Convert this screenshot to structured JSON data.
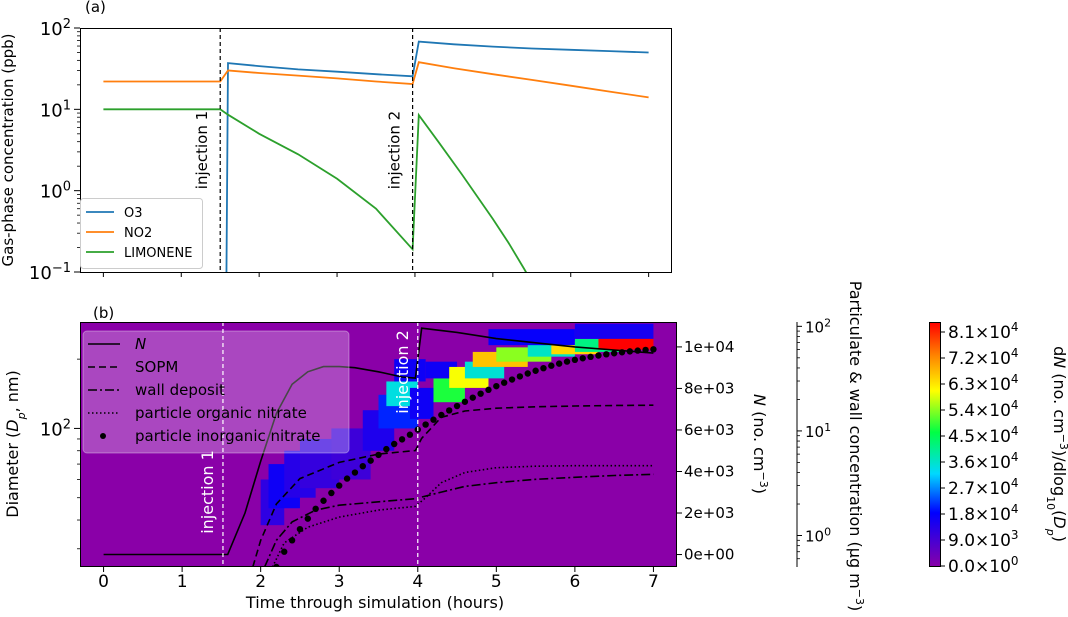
{
  "chart_data": [
    {
      "type": "line",
      "panel_label": "(a)",
      "ylabel": "Gas-phase concentration (ppb)",
      "yscale": "log",
      "ylim": [
        0.1,
        100
      ],
      "xlim": [
        -0.3,
        7.3
      ],
      "ytick_labels": [
        "10$^{-1}$",
        "10$^{0}$",
        "10$^{1}$",
        "10$^{2}$"
      ],
      "y_ticks": [
        {
          "value": 0.1,
          "base": "10",
          "exp": "−1"
        },
        {
          "value": 1,
          "base": "10",
          "exp": "0"
        },
        {
          "value": 10,
          "base": "10",
          "exp": "1"
        },
        {
          "value": 100,
          "base": "10",
          "exp": "2"
        }
      ],
      "injections": [
        {
          "x": 1.5,
          "label": "injection 1"
        },
        {
          "x": 3.97,
          "label": "injection 2"
        }
      ],
      "legend_position": "lower-left",
      "series": [
        {
          "name": "O3",
          "color": "#1f77b4",
          "x": [
            0,
            1.5,
            1.52,
            1.58,
            1.6,
            2.0,
            2.5,
            3.0,
            3.5,
            3.97,
            4.05,
            4.5,
            5.0,
            5.5,
            6.0,
            6.5,
            7.0
          ],
          "y": [
            null,
            null,
            0.08,
            0.08,
            37,
            34,
            31,
            29,
            27,
            25.5,
            68,
            63,
            59,
            56,
            54,
            52,
            50
          ]
        },
        {
          "name": "NO2",
          "color": "#ff7f0e",
          "x": [
            0,
            1.5,
            1.6,
            2.0,
            2.5,
            3.0,
            3.5,
            3.97,
            4.05,
            4.5,
            5.0,
            5.5,
            6.0,
            6.5,
            7.0
          ],
          "y": [
            22,
            22,
            30,
            28,
            26,
            24,
            22,
            20.5,
            38,
            32,
            27,
            23,
            19.5,
            16.5,
            14
          ]
        },
        {
          "name": "LIMONENE",
          "color": "#2ca02c",
          "x": [
            0,
            1.0,
            1.5,
            1.6,
            2.0,
            2.5,
            3.0,
            3.5,
            3.97,
            4.05,
            4.3,
            4.6,
            5.0,
            5.2,
            5.4,
            5.5
          ],
          "y": [
            10,
            10,
            10,
            8.6,
            5.0,
            2.8,
            1.4,
            0.6,
            0.19,
            8.5,
            4.0,
            1.6,
            0.45,
            0.23,
            0.11,
            0.075
          ]
        }
      ]
    },
    {
      "type": "heatmap",
      "panel_label": "(b)",
      "xlabel": "Time through simulation (hours)",
      "ylabel": "Diameter (D$_p$, nm)",
      "ytick_labels": [
        "10$^{2}$"
      ],
      "y_ticks": [
        {
          "value": 100,
          "base": "10",
          "exp": "2"
        }
      ],
      "yscale": "log",
      "xlim": [
        -0.3,
        7.3
      ],
      "xticks": [
        0,
        1,
        2,
        3,
        4,
        5,
        6,
        7
      ],
      "xtick_labels": [
        "0",
        "1",
        "2",
        "3",
        "4",
        "5",
        "6",
        "7"
      ],
      "ylim_nm": [
        25,
        290
      ],
      "injections": [
        {
          "x": 1.52,
          "label": "injection 1"
        },
        {
          "x": 4.0,
          "label": "injection 2"
        }
      ],
      "right_axis": {
        "label": "N (no. cm$^{-3}$)",
        "ylim": [
          -600,
          11200
        ],
        "ticks": [
          0,
          2000,
          4000,
          6000,
          8000,
          10000
        ],
        "tick_labels": [
          "0e+00",
          "2e+03",
          "4e+03",
          "6e+03",
          "8e+03",
          "1e+04"
        ]
      },
      "far_right_axis": {
        "label": "Particulate & wall concentration (µg m$^{-3}$)",
        "yscale": "log",
        "ylim": [
          0.5,
          110
        ],
        "tick_labels": [
          "10$^{0}$",
          "10$^{1}$",
          "10$^{2}$"
        ],
        "ticks": [
          {
            "value": 1,
            "base": "10",
            "exp": "0"
          },
          {
            "value": 10,
            "base": "10",
            "exp": "1"
          },
          {
            "value": 100,
            "base": "10",
            "exp": "2"
          }
        ]
      },
      "colorbar": {
        "label": "dN (no. cm$^{-3}$)/dlog$_{10}$(D$_p$)",
        "min": 0,
        "max": 81000,
        "tick_labels": [
          "0.0×10$^{0}$",
          "9.0×10$^{3}$",
          "1.8×10$^{4}$",
          "2.7×10$^{4}$",
          "3.6×10$^{4}$",
          "4.5×10$^{4}$",
          "5.4×10$^{4}$",
          "6.3×10$^{4}$",
          "7.2×10$^{4}$",
          "8.1×10$^{4}$"
        ],
        "ticks": [
          {
            "m": "0.0",
            "exp": "0"
          },
          {
            "m": "9.0",
            "exp": "3"
          },
          {
            "m": "1.8",
            "exp": "4"
          },
          {
            "m": "2.7",
            "exp": "4"
          },
          {
            "m": "3.6",
            "exp": "4"
          },
          {
            "m": "4.5",
            "exp": "4"
          },
          {
            "m": "5.4",
            "exp": "4"
          },
          {
            "m": "6.3",
            "exp": "4"
          },
          {
            "m": "7.2",
            "exp": "4"
          },
          {
            "m": "8.1",
            "exp": "4"
          }
        ]
      },
      "heatmap_cells": [
        {
          "t0": 2.0,
          "t1": 2.3,
          "d0": 38,
          "d1": 60,
          "v": 12000
        },
        {
          "t0": 2.1,
          "t1": 2.5,
          "d0": 45,
          "d1": 70,
          "v": 16000
        },
        {
          "t0": 2.3,
          "t1": 2.7,
          "d0": 50,
          "d1": 80,
          "v": 13000
        },
        {
          "t0": 2.5,
          "t1": 3.0,
          "d0": 55,
          "d1": 90,
          "v": 11000
        },
        {
          "t0": 2.9,
          "t1": 3.4,
          "d0": 60,
          "d1": 100,
          "v": 10000
        },
        {
          "t0": 3.3,
          "t1": 3.7,
          "d0": 80,
          "d1": 120,
          "v": 14000
        },
        {
          "t0": 3.5,
          "t1": 4.0,
          "d0": 100,
          "d1": 140,
          "v": 20000
        },
        {
          "t0": 3.6,
          "t1": 4.0,
          "d0": 125,
          "d1": 160,
          "v": 33000
        },
        {
          "t0": 3.9,
          "t1": 4.2,
          "d0": 110,
          "d1": 150,
          "v": 16000
        },
        {
          "t0": 3.7,
          "t1": 4.1,
          "d0": 160,
          "d1": 200,
          "v": 16000
        },
        {
          "t0": 4.2,
          "t1": 4.6,
          "d0": 130,
          "d1": 165,
          "v": 46000
        },
        {
          "t0": 4.1,
          "t1": 4.5,
          "d0": 165,
          "d1": 195,
          "v": 16000
        },
        {
          "t0": 4.4,
          "t1": 4.9,
          "d0": 150,
          "d1": 185,
          "v": 58000
        },
        {
          "t0": 4.6,
          "t1": 5.1,
          "d0": 165,
          "d1": 195,
          "v": 34000
        },
        {
          "t0": 4.7,
          "t1": 5.4,
          "d0": 185,
          "d1": 215,
          "v": 64000
        },
        {
          "t0": 5.0,
          "t1": 5.7,
          "d0": 195,
          "d1": 225,
          "v": 52000
        },
        {
          "t0": 5.4,
          "t1": 6.0,
          "d0": 205,
          "d1": 235,
          "v": 35000
        },
        {
          "t0": 5.7,
          "t1": 6.3,
          "d0": 210,
          "d1": 240,
          "v": 62000
        },
        {
          "t0": 6.0,
          "t1": 6.6,
          "d0": 215,
          "d1": 245,
          "v": 40000
        },
        {
          "t0": 6.3,
          "t1": 7.0,
          "d0": 220,
          "d1": 250,
          "v": 81000
        },
        {
          "t0": 4.9,
          "t1": 6.0,
          "d0": 230,
          "d1": 270,
          "v": 17000
        },
        {
          "t0": 6.0,
          "t1": 7.0,
          "d0": 245,
          "d1": 285,
          "v": 15000
        }
      ],
      "series": [
        {
          "name": "N",
          "axis": "right",
          "style": "solid",
          "x": [
            0,
            1.5,
            1.58,
            1.8,
            2.0,
            2.2,
            2.4,
            2.6,
            2.8,
            3.0,
            3.2,
            3.5,
            3.8,
            3.97,
            4.05,
            4.5,
            5.0,
            5.5,
            6.0,
            6.5,
            7.0
          ],
          "y": [
            0,
            0,
            0,
            2000,
            4500,
            6800,
            8200,
            8800,
            9050,
            9050,
            9000,
            8800,
            8550,
            8500,
            10900,
            10700,
            10400,
            10200,
            10000,
            9850,
            9700
          ]
        },
        {
          "name": "SOPM",
          "axis": "far_right",
          "style": "dashed",
          "x": [
            1.9,
            2.0,
            2.2,
            2.5,
            3.0,
            3.5,
            3.97,
            4.05,
            4.3,
            4.6,
            5.0,
            5.5,
            6.0,
            6.5,
            7.0
          ],
          "y": [
            0.5,
            0.9,
            2.0,
            3.5,
            5.0,
            6.0,
            6.5,
            8.5,
            13.5,
            15.5,
            16.5,
            17.0,
            17.3,
            17.5,
            17.6
          ]
        },
        {
          "name": "wall deposit",
          "axis": "far_right",
          "style": "dashdot",
          "x": [
            2.05,
            2.2,
            2.4,
            2.7,
            3.0,
            3.5,
            3.97,
            4.3,
            4.6,
            5.0,
            5.5,
            6.0,
            6.5,
            7.0
          ],
          "y": [
            0.5,
            0.9,
            1.35,
            1.75,
            1.95,
            2.1,
            2.25,
            2.6,
            2.95,
            3.2,
            3.45,
            3.6,
            3.75,
            3.85
          ]
        },
        {
          "name": "particle organic nitrate",
          "axis": "far_right",
          "style": "dotted",
          "x": [
            2.15,
            2.3,
            2.6,
            3.0,
            3.5,
            3.97,
            4.1,
            4.3,
            4.6,
            5.0,
            5.5,
            6.0,
            6.5,
            7.0
          ],
          "y": [
            0.5,
            0.85,
            1.2,
            1.5,
            1.75,
            1.9,
            2.3,
            3.2,
            4.0,
            4.45,
            4.6,
            4.65,
            4.65,
            4.65
          ]
        },
        {
          "name": "particle inorganic nitrate",
          "axis": "far_right",
          "style": "dots",
          "x": [
            2.2,
            2.3,
            2.4,
            2.5,
            2.6,
            2.7,
            2.8,
            2.9,
            3.0,
            3.1,
            3.2,
            3.3,
            3.4,
            3.5,
            3.6,
            3.7,
            3.8,
            3.9,
            4.0,
            4.1,
            4.2,
            4.3,
            4.4,
            4.5,
            4.6,
            4.7,
            4.8,
            4.9,
            5.0,
            5.1,
            5.2,
            5.3,
            5.4,
            5.5,
            5.6,
            5.7,
            5.8,
            5.9,
            6.0,
            6.1,
            6.2,
            6.3,
            6.4,
            6.5,
            6.6,
            6.7,
            6.8,
            6.9,
            7.0
          ],
          "y": [
            0.5,
            0.7,
            0.9,
            1.15,
            1.45,
            1.8,
            2.15,
            2.55,
            3.0,
            3.5,
            4.0,
            4.6,
            5.2,
            5.9,
            6.7,
            7.5,
            8.3,
            9.2,
            10.3,
            11.5,
            12.8,
            14.2,
            15.7,
            17.3,
            19.0,
            20.8,
            22.7,
            24.7,
            26.8,
            28.9,
            31.0,
            33.2,
            35.4,
            37.6,
            39.8,
            42.0,
            44.0,
            46.0,
            47.8,
            49.5,
            51.1,
            52.6,
            54.0,
            55.3,
            56.5,
            57.6,
            58.6,
            59.5,
            60.3
          ]
        }
      ]
    }
  ]
}
